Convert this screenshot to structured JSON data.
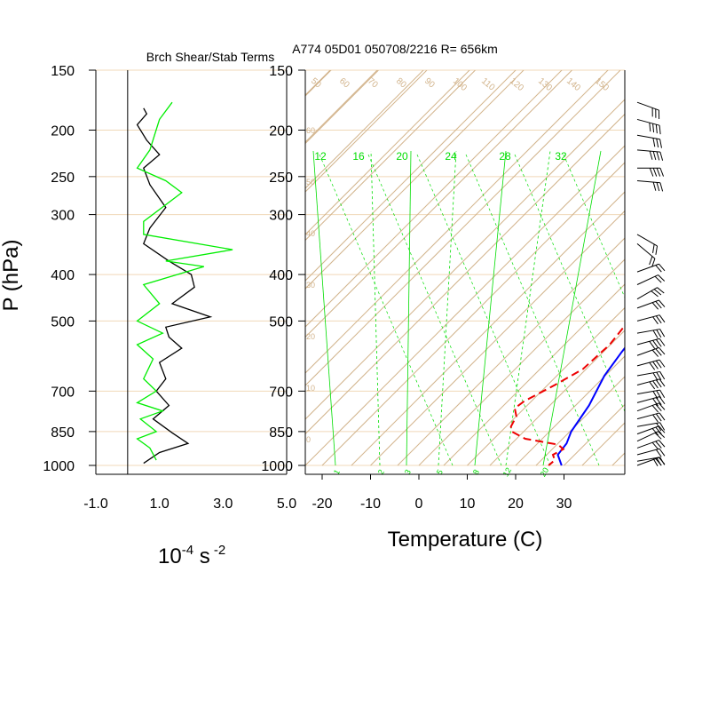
{
  "chart_data": [
    {
      "type": "line",
      "title": "Brch Shear/Stab Terms",
      "ylabel": "P (hPa)",
      "xlabel_base": "10",
      "xlabel_exp": "-4",
      "xlabel_unit": " s",
      "xlabel_unit_exp": " -2",
      "xlim": [
        -1.0,
        5.0
      ],
      "xticks": [
        "-1.0",
        "1.0",
        "3.0",
        "5.0"
      ],
      "pressure_ticks": [
        150,
        200,
        250,
        300,
        400,
        500,
        700,
        850,
        1000
      ],
      "y_scale": "log-pressure",
      "series": [
        {
          "color": "#000000",
          "points": [
            [
              0.5,
              180
            ],
            [
              0.6,
              185
            ],
            [
              0.3,
              195
            ],
            [
              0.6,
              210
            ],
            [
              1.0,
              225
            ],
            [
              0.5,
              240
            ],
            [
              0.7,
              260
            ],
            [
              1.2,
              290
            ],
            [
              0.7,
              320
            ],
            [
              0.5,
              345
            ],
            [
              1.3,
              375
            ],
            [
              2.0,
              400
            ],
            [
              2.1,
              425
            ],
            [
              1.4,
              460
            ],
            [
              2.6,
              490
            ],
            [
              1.2,
              515
            ],
            [
              1.3,
              540
            ],
            [
              1.7,
              570
            ],
            [
              1.0,
              610
            ],
            [
              1.2,
              660
            ],
            [
              0.9,
              700
            ],
            [
              1.3,
              750
            ],
            [
              0.8,
              800
            ],
            [
              1.4,
              855
            ],
            [
              1.9,
              900
            ],
            [
              1.0,
              940
            ],
            [
              0.5,
              990
            ]
          ]
        },
        {
          "color": "#00ee00",
          "points": [
            [
              1.4,
              175
            ],
            [
              1.0,
              190
            ],
            [
              0.7,
              220
            ],
            [
              0.3,
              240
            ],
            [
              1.2,
              255
            ],
            [
              1.7,
              270
            ],
            [
              0.5,
              310
            ],
            [
              0.5,
              330
            ],
            [
              3.3,
              355
            ],
            [
              1.2,
              375
            ],
            [
              2.4,
              385
            ],
            [
              0.5,
              420
            ],
            [
              1.0,
              460
            ],
            [
              0.3,
              500
            ],
            [
              1.1,
              530
            ],
            [
              0.3,
              560
            ],
            [
              0.8,
              600
            ],
            [
              0.5,
              660
            ],
            [
              0.9,
              700
            ],
            [
              0.3,
              740
            ],
            [
              1.1,
              770
            ],
            [
              0.4,
              800
            ],
            [
              0.9,
              850
            ],
            [
              0.3,
              880
            ],
            [
              0.7,
              920
            ],
            [
              0.9,
              975
            ]
          ]
        }
      ]
    },
    {
      "type": "line",
      "title": "A774 05D01 050708/2216 R= 656km",
      "xlabel": "Temperature (C)",
      "xlim": [
        -25,
        40
      ],
      "xticks": [
        -20,
        -10,
        0,
        10,
        20,
        30
      ],
      "pressure_ticks": [
        150,
        200,
        250,
        300,
        400,
        500,
        700,
        850,
        1000
      ],
      "y_scale": "log-pressure",
      "skew": "skew-T",
      "mixing_ratio_labels": [
        "12",
        "16",
        "20",
        "24",
        "28",
        "32"
      ],
      "mixing_ratio_labels_bottom": [
        "1",
        "2",
        "3",
        "5",
        "8",
        "12",
        "20"
      ],
      "theta_labels": [
        "50",
        "60",
        "70",
        "80",
        "90",
        "100",
        "110",
        "120",
        "130",
        "140",
        "150"
      ],
      "series": [
        {
          "color": "#0000ff",
          "style": "solid",
          "points": [
            [
              -1.5,
              180
            ],
            [
              2.8,
              210
            ],
            [
              8.5,
              250
            ],
            [
              12.3,
              300
            ],
            [
              14.2,
              350
            ],
            [
              15.0,
              400
            ],
            [
              16.2,
              450
            ],
            [
              17.5,
              480
            ],
            [
              17.5,
              520
            ],
            [
              18.5,
              580
            ],
            [
              19.8,
              650
            ],
            [
              22.8,
              750
            ],
            [
              24.5,
              850
            ],
            [
              26.0,
              900
            ],
            [
              26.5,
              950
            ],
            [
              29.5,
              1000
            ]
          ]
        },
        {
          "color": "#ee0000",
          "style": "dashed",
          "points": [
            [
              -4.8,
              205
            ],
            [
              -3.5,
              225
            ],
            [
              -1.5,
              240
            ],
            [
              3.5,
              270
            ],
            [
              2.5,
              285
            ],
            [
              6.5,
              300
            ],
            [
              9.5,
              330
            ],
            [
              12.5,
              370
            ],
            [
              13.5,
              400
            ],
            [
              13.8,
              440
            ],
            [
              13.8,
              470
            ],
            [
              13.5,
              500
            ],
            [
              14.5,
              560
            ],
            [
              14.0,
              630
            ],
            [
              11.5,
              680
            ],
            [
              8.5,
              735
            ],
            [
              8.0,
              760
            ],
            [
              10.0,
              790
            ],
            [
              11.0,
              830
            ],
            [
              12.2,
              850
            ],
            [
              16.5,
              880
            ],
            [
              24.5,
              905
            ],
            [
              26.5,
              925
            ],
            [
              25.5,
              950
            ],
            [
              27.0,
              975
            ],
            [
              26.8,
              1000
            ]
          ]
        }
      ]
    }
  ],
  "wind_barbs": [
    {
      "p": 175,
      "dir": 290,
      "spd": 30
    },
    {
      "p": 190,
      "dir": 285,
      "spd": 35
    },
    {
      "p": 205,
      "dir": 280,
      "spd": 25
    },
    {
      "p": 220,
      "dir": 275,
      "spd": 40
    },
    {
      "p": 240,
      "dir": 270,
      "spd": 35
    },
    {
      "p": 255,
      "dir": 275,
      "spd": 30
    },
    {
      "p": 330,
      "dir": 300,
      "spd": 20
    },
    {
      "p": 345,
      "dir": 310,
      "spd": 15
    },
    {
      "p": 395,
      "dir": 250,
      "spd": 15
    },
    {
      "p": 420,
      "dir": 245,
      "spd": 20
    },
    {
      "p": 450,
      "dir": 240,
      "spd": 25
    },
    {
      "p": 470,
      "dir": 250,
      "spd": 25
    },
    {
      "p": 500,
      "dir": 255,
      "spd": 30
    },
    {
      "p": 530,
      "dir": 260,
      "spd": 30
    },
    {
      "p": 560,
      "dir": 255,
      "spd": 35
    },
    {
      "p": 590,
      "dir": 250,
      "spd": 30
    },
    {
      "p": 620,
      "dir": 255,
      "spd": 35
    },
    {
      "p": 650,
      "dir": 260,
      "spd": 30
    },
    {
      "p": 680,
      "dir": 255,
      "spd": 35
    },
    {
      "p": 710,
      "dir": 260,
      "spd": 30
    },
    {
      "p": 740,
      "dir": 255,
      "spd": 30
    },
    {
      "p": 770,
      "dir": 250,
      "spd": 25
    },
    {
      "p": 800,
      "dir": 255,
      "spd": 25
    },
    {
      "p": 830,
      "dir": 260,
      "spd": 20
    },
    {
      "p": 860,
      "dir": 250,
      "spd": 25
    },
    {
      "p": 890,
      "dir": 245,
      "spd": 20
    },
    {
      "p": 920,
      "dir": 250,
      "spd": 25
    },
    {
      "p": 950,
      "dir": 255,
      "spd": 20
    },
    {
      "p": 980,
      "dir": 260,
      "spd": 25
    },
    {
      "p": 1000,
      "dir": 250,
      "spd": 20
    }
  ],
  "colors": {
    "grid_pressure": "#f0d8b8",
    "adiabat": "#d2b48c",
    "mixing_ratio": "#00dd00",
    "axis": "#000000"
  }
}
